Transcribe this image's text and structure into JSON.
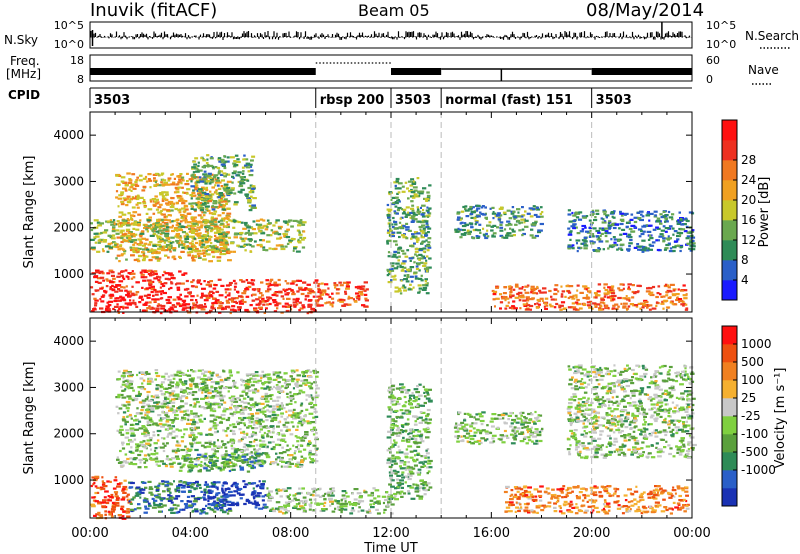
{
  "header": {
    "station": "Inuvik (fitACF)",
    "beam": "Beam 05",
    "date": "08/May/2014"
  },
  "top_panels": {
    "nsky_label": "N.Sky",
    "nsky_ticks": [
      "10^5",
      "10^0"
    ],
    "nsearch_label": "N.Search",
    "nsearch_ticks": [
      "10^5",
      "10^0"
    ],
    "freq_label_1": "Freq.",
    "freq_label_2": "[MHz]",
    "freq_ticks": [
      "18",
      "8"
    ],
    "nave_label": "Nave",
    "nave_ticks": [
      "60",
      "0"
    ],
    "cpid_label": "CPID",
    "cpid_segments": [
      {
        "label": "3503",
        "start_h": 0.0,
        "end_h": 9.0
      },
      {
        "label": "rbsp 200",
        "start_h": 9.0,
        "end_h": 12.0
      },
      {
        "label": "3503",
        "start_h": 12.0,
        "end_h": 14.0
      },
      {
        "label": "normal (fast) 151",
        "start_h": 14.0,
        "end_h": 20.0
      },
      {
        "label": "3503",
        "start_h": 20.0,
        "end_h": 24.0
      }
    ]
  },
  "chart_data": [
    {
      "type": "heatmap",
      "title": "",
      "xlabel": "Time UT",
      "ylabel": "Slant Range [km]",
      "xlim": [
        0,
        24
      ],
      "ylim": [
        180,
        4500
      ],
      "x_ticks": [
        "00:00",
        "04:00",
        "08:00",
        "12:00",
        "16:00",
        "20:00",
        "00:00"
      ],
      "y_ticks": [
        "1000",
        "2000",
        "3000",
        "4000"
      ],
      "mode_change_hours": [
        9,
        12,
        14,
        20
      ],
      "colorbar": {
        "label": "Power [dB]",
        "ticks": [
          "4",
          "8",
          "12",
          "16",
          "20",
          "24",
          "28"
        ],
        "colors": [
          "#1a1aff",
          "#2a5fc8",
          "#2e8b57",
          "#6aa84f",
          "#c8c82a",
          "#f0a020",
          "#f07820",
          "#ee3020",
          "#ff1010"
        ]
      },
      "regions": [
        {
          "t0": 0.0,
          "t1": 3.8,
          "r0": 180,
          "r1": 1100,
          "level": 0.9
        },
        {
          "t0": 3.8,
          "t1": 9.0,
          "r0": 180,
          "r1": 900,
          "level": 0.85
        },
        {
          "t0": 9.0,
          "t1": 11.0,
          "r0": 300,
          "r1": 850,
          "level": 0.8
        },
        {
          "t0": 1.0,
          "t1": 5.5,
          "r0": 1300,
          "r1": 3200,
          "level": 0.6
        },
        {
          "t0": 0.0,
          "t1": 8.5,
          "r0": 1500,
          "r1": 2200,
          "level": 0.45
        },
        {
          "t0": 4.0,
          "t1": 6.5,
          "r0": 2400,
          "r1": 3600,
          "level": 0.35
        },
        {
          "t0": 11.8,
          "t1": 13.5,
          "r0": 600,
          "r1": 3100,
          "level": 0.35
        },
        {
          "t0": 14.5,
          "t1": 18.0,
          "r0": 1800,
          "r1": 2500,
          "level": 0.3
        },
        {
          "t0": 16.0,
          "t1": 23.8,
          "r0": 250,
          "r1": 800,
          "level": 0.75
        },
        {
          "t0": 19.0,
          "t1": 24.0,
          "r0": 1500,
          "r1": 2400,
          "level": 0.25
        }
      ]
    },
    {
      "type": "heatmap",
      "title": "",
      "xlabel": "Time UT",
      "ylabel": "Slant Range [km]",
      "xlim": [
        0,
        24
      ],
      "ylim": [
        180,
        4500
      ],
      "x_ticks": [
        "00:00",
        "04:00",
        "08:00",
        "12:00",
        "16:00",
        "20:00",
        "00:00"
      ],
      "y_ticks": [
        "1000",
        "2000",
        "3000",
        "4000"
      ],
      "mode_change_hours": [
        9,
        12,
        14,
        20
      ],
      "colorbar": {
        "label": "Velocity [m s⁻¹]",
        "ticks": [
          "1000",
          "500",
          "100",
          "25",
          "-25",
          "-100",
          "-500",
          "-1000"
        ],
        "colors": [
          "#1a32b4",
          "#2a5fc8",
          "#2e8b57",
          "#5aa03c",
          "#7fd040",
          "#c8c8c8",
          "#f5b030",
          "#f08020",
          "#ee5010",
          "#ff1010"
        ]
      },
      "regions": [
        {
          "t0": 0.0,
          "t1": 1.5,
          "r0": 180,
          "r1": 1100,
          "level": 0.85
        },
        {
          "t0": 1.5,
          "t1": 5.5,
          "r0": 300,
          "r1": 1000,
          "level": 0.2
        },
        {
          "t0": 4.5,
          "t1": 7.0,
          "r0": 400,
          "r1": 1000,
          "level": 0.05
        },
        {
          "t0": 7.0,
          "t1": 12.0,
          "r0": 300,
          "r1": 850,
          "level": 0.45
        },
        {
          "t0": 1.0,
          "t1": 9.0,
          "r0": 1300,
          "r1": 3400,
          "level": 0.45
        },
        {
          "t0": 3.5,
          "t1": 7.0,
          "r0": 1200,
          "r1": 1600,
          "level": 0.3
        },
        {
          "t0": 11.8,
          "t1": 13.5,
          "r0": 600,
          "r1": 3100,
          "level": 0.4
        },
        {
          "t0": 14.5,
          "t1": 18.0,
          "r0": 1800,
          "r1": 2500,
          "level": 0.45
        },
        {
          "t0": 16.5,
          "t1": 23.8,
          "r0": 300,
          "r1": 900,
          "level": 0.75
        },
        {
          "t0": 19.0,
          "t1": 24.0,
          "r0": 1500,
          "r1": 3500,
          "level": 0.45
        }
      ]
    }
  ]
}
